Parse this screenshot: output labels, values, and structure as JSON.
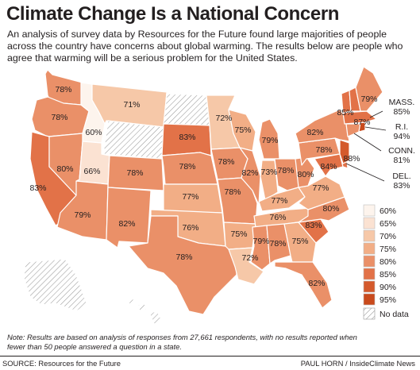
{
  "title": "Climate Change Is a National Concern",
  "intro": "An analysis of survey data by Resources for the Future found large majorities of people across the country have concerns about global warming. The results below are people who agree that warming will be a serious problem for the United States.",
  "note": "Note: Results are based on analysis of responses from 27,661 respondents, with no results reported when fewer than 50 people answered a question in a state.",
  "source": "SOURCE: Resources for the Future",
  "credit": "PAUL HORN / InsideClimate News",
  "colors": {
    "60": "#fdf4ed",
    "65": "#fbe2d2",
    "70": "#f6c8a8",
    "75": "#f2ae86",
    "80": "#ea9068",
    "85": "#e27248",
    "90": "#d45a2c",
    "95": "#c94a1c",
    "nodata": "#ffffff",
    "border": "#ffffff"
  },
  "legend": {
    "items": [
      "60%",
      "65%",
      "70%",
      "75%",
      "80%",
      "85%",
      "90%",
      "95%"
    ],
    "nodata": "No data"
  },
  "states": [
    {
      "id": "WA",
      "value": 78,
      "label": "78%"
    },
    {
      "id": "OR",
      "value": 78,
      "label": "78%"
    },
    {
      "id": "CA",
      "value": 83,
      "label": "83%"
    },
    {
      "id": "NV",
      "value": 80,
      "label": "80%"
    },
    {
      "id": "ID",
      "value": 60,
      "label": "60%"
    },
    {
      "id": "MT",
      "value": 71,
      "label": "71%"
    },
    {
      "id": "WY",
      "value": null,
      "label": ""
    },
    {
      "id": "UT",
      "value": 66,
      "label": "66%"
    },
    {
      "id": "AZ",
      "value": 79,
      "label": "79%"
    },
    {
      "id": "CO",
      "value": 78,
      "label": "78%"
    },
    {
      "id": "NM",
      "value": 82,
      "label": "82%"
    },
    {
      "id": "ND",
      "value": null,
      "label": ""
    },
    {
      "id": "SD",
      "value": 83,
      "label": "83%"
    },
    {
      "id": "NE",
      "value": 78,
      "label": "78%"
    },
    {
      "id": "KS",
      "value": 77,
      "label": "77%"
    },
    {
      "id": "OK",
      "value": 76,
      "label": "76%"
    },
    {
      "id": "TX",
      "value": 78,
      "label": "78%"
    },
    {
      "id": "MN",
      "value": 72,
      "label": "72%"
    },
    {
      "id": "IA",
      "value": 78,
      "label": "78%"
    },
    {
      "id": "MO",
      "value": 78,
      "label": "78%"
    },
    {
      "id": "AR",
      "value": 75,
      "label": "75%"
    },
    {
      "id": "LA",
      "value": 72,
      "label": "72%"
    },
    {
      "id": "WI",
      "value": 75,
      "label": "75%"
    },
    {
      "id": "IL",
      "value": 82,
      "label": "82%"
    },
    {
      "id": "MI",
      "value": 79,
      "label": "79%"
    },
    {
      "id": "IN",
      "value": 73,
      "label": "73%"
    },
    {
      "id": "OH",
      "value": 78,
      "label": "78%"
    },
    {
      "id": "KY",
      "value": 77,
      "label": "77%"
    },
    {
      "id": "TN",
      "value": 76,
      "label": "76%"
    },
    {
      "id": "MS",
      "value": 79,
      "label": "79%"
    },
    {
      "id": "AL",
      "value": 78,
      "label": "78%"
    },
    {
      "id": "GA",
      "value": 75,
      "label": "75%"
    },
    {
      "id": "FL",
      "value": 82,
      "label": "82%"
    },
    {
      "id": "SC",
      "value": 83,
      "label": "83%"
    },
    {
      "id": "NC",
      "value": 80,
      "label": "80%"
    },
    {
      "id": "VA",
      "value": 77,
      "label": "77%"
    },
    {
      "id": "WV",
      "value": 80,
      "label": "80%"
    },
    {
      "id": "PA",
      "value": 78,
      "label": "78%"
    },
    {
      "id": "MD",
      "value": 84,
      "label": "84%"
    },
    {
      "id": "DE",
      "value": 83,
      "label": "DEL.\n83%"
    },
    {
      "id": "NJ",
      "value": 88,
      "label": "88%"
    },
    {
      "id": "NY",
      "value": 82,
      "label": "82%"
    },
    {
      "id": "CT",
      "value": 81,
      "label": "CONN.\n81%"
    },
    {
      "id": "RI",
      "value": 94,
      "label": "R.I.\n94%"
    },
    {
      "id": "MA",
      "value": 85,
      "label": "MASS.\n85%"
    },
    {
      "id": "VT",
      "value": 85,
      "label": "85%"
    },
    {
      "id": "NH",
      "value": 87,
      "label": "87%"
    },
    {
      "id": "ME",
      "value": 79,
      "label": "79%"
    },
    {
      "id": "AK",
      "value": null,
      "label": ""
    },
    {
      "id": "HI",
      "value": null,
      "label": ""
    }
  ]
}
